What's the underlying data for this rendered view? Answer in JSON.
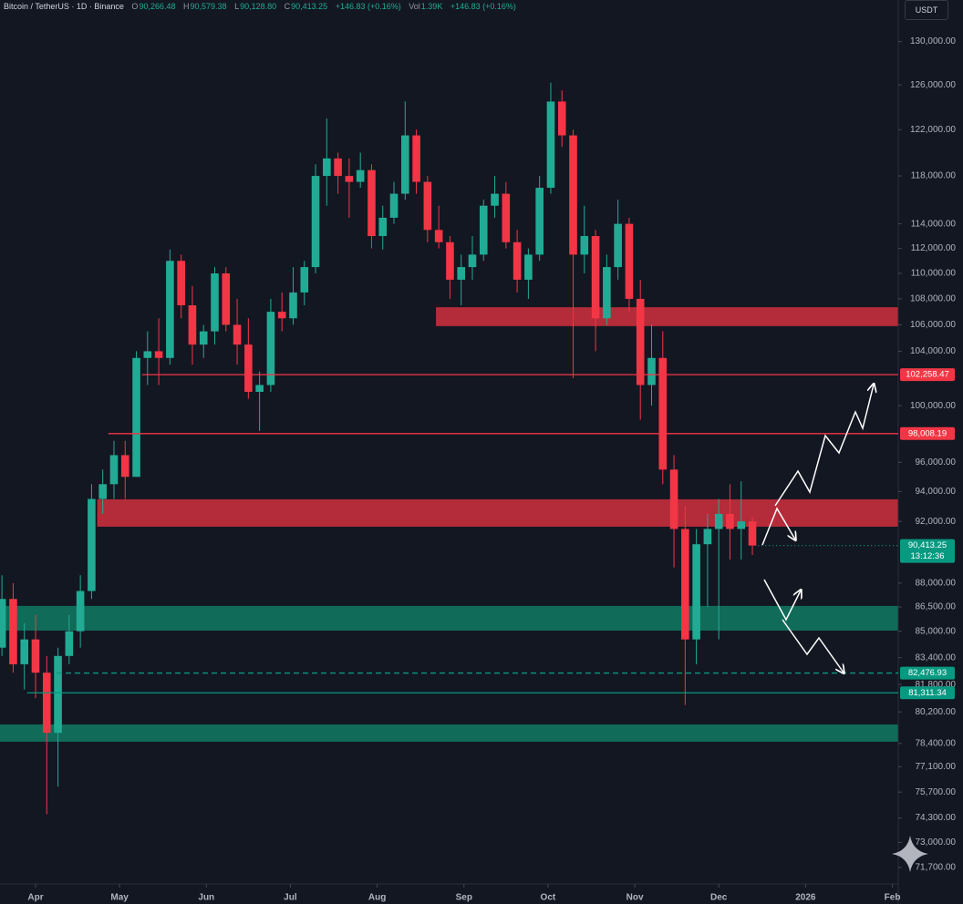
{
  "header": {
    "symbol": "Bitcoin / TetherUS · 1D · Binance",
    "ohlc": [
      {
        "key": "O",
        "value": "90,266.48"
      },
      {
        "key": "H",
        "value": "90,579.38"
      },
      {
        "key": "L",
        "value": "90,128.80"
      },
      {
        "key": "C",
        "value": "90,413.25"
      }
    ],
    "change": "+146.83 (+0.16%)",
    "vol_key": "Vol",
    "vol": "1.39K",
    "vol_change": "+146.83 (+0.16%)"
  },
  "currency_button": "USDT",
  "chart_data": {
    "type": "candlestick",
    "log": true,
    "grid": false,
    "up_color": "#22ab94",
    "down_color": "#f23645",
    "xlim": [
      -12.7,
      308.1
    ],
    "ylim": [
      70850,
      133950
    ],
    "xticks": [
      {
        "value": 0,
        "label": "Apr"
      },
      {
        "value": 30,
        "label": "May"
      },
      {
        "value": 61,
        "label": "Jun"
      },
      {
        "value": 91,
        "label": "Jul"
      },
      {
        "value": 122,
        "label": "Aug"
      },
      {
        "value": 153,
        "label": "Sep"
      },
      {
        "value": 183,
        "label": "Oct"
      },
      {
        "value": 214,
        "label": "Nov"
      },
      {
        "value": 244,
        "label": "Dec"
      },
      {
        "value": 275,
        "label": "2026"
      },
      {
        "value": 306,
        "label": "Feb"
      }
    ],
    "yticks": [
      {
        "value": 130000,
        "label": "130,000.00"
      },
      {
        "value": 126000,
        "label": "126,000.00"
      },
      {
        "value": 122000,
        "label": "122,000.00"
      },
      {
        "value": 118000,
        "label": "118,000.00"
      },
      {
        "value": 114000,
        "label": "114,000.00"
      },
      {
        "value": 112000,
        "label": "112,000.00"
      },
      {
        "value": 110000,
        "label": "110,000.00"
      },
      {
        "value": 108000,
        "label": "108,000.00"
      },
      {
        "value": 106000,
        "label": "106,000.00"
      },
      {
        "value": 104000,
        "label": "104,000.00"
      },
      {
        "value": 100000,
        "label": "100,000.00"
      },
      {
        "value": 96000,
        "label": "96,000.00"
      },
      {
        "value": 94000,
        "label": "94,000.00"
      },
      {
        "value": 92000,
        "label": "92,000.00"
      },
      {
        "value": 88000,
        "label": "88,000.00"
      },
      {
        "value": 86500,
        "label": "86,500.00"
      },
      {
        "value": 85000,
        "label": "85,000.00"
      },
      {
        "value": 83400,
        "label": "83,400.00"
      },
      {
        "value": 81800,
        "label": "81,800.00"
      },
      {
        "value": 80200,
        "label": "80,200.00"
      },
      {
        "value": 78400,
        "label": "78,400.00"
      },
      {
        "value": 77100,
        "label": "77,100.00"
      },
      {
        "value": 75700,
        "label": "75,700.00"
      },
      {
        "value": 74300,
        "label": "74,300.00"
      },
      {
        "value": 73000,
        "label": "73,000.00"
      },
      {
        "value": 71700,
        "label": "71,700.00"
      }
    ],
    "x": [
      -12,
      -8,
      -4,
      0,
      4,
      8,
      12,
      16,
      20,
      24,
      28,
      32,
      36,
      40,
      44,
      48,
      52,
      56,
      60,
      64,
      68,
      72,
      76,
      80,
      84,
      88,
      92,
      96,
      100,
      104,
      108,
      112,
      116,
      120,
      124,
      128,
      132,
      136,
      140,
      144,
      148,
      152,
      156,
      160,
      164,
      168,
      172,
      176,
      180,
      184,
      188,
      192,
      196,
      200,
      204,
      208,
      212,
      216,
      220,
      224,
      228,
      232,
      236,
      240,
      244,
      248,
      252,
      256
    ],
    "open": [
      84000,
      87000,
      83000,
      84500,
      82500,
      79000,
      83500,
      85000,
      87500,
      93500,
      94500,
      96500,
      95000,
      103500,
      104000,
      103500,
      111000,
      107500,
      104500,
      105500,
      110000,
      106000,
      104500,
      101000,
      101500,
      107000,
      106500,
      108500,
      110500,
      118000,
      119500,
      118000,
      117500,
      118500,
      113000,
      114500,
      116500,
      121500,
      117500,
      113500,
      112500,
      109500,
      110500,
      111500,
      115500,
      116500,
      112500,
      109500,
      111500,
      117000,
      124500,
      121500,
      111500,
      113000,
      106500,
      110500,
      114000,
      108000,
      101500,
      103500,
      95500,
      91500,
      84500,
      90500,
      91500,
      92500,
      91500,
      92000
    ],
    "high": [
      88500,
      88000,
      85500,
      86000,
      83500,
      84000,
      86000,
      88500,
      94500,
      95500,
      97500,
      97500,
      104000,
      105500,
      106500,
      111900,
      111500,
      109000,
      106000,
      110500,
      110500,
      108000,
      106500,
      102500,
      108000,
      108500,
      110500,
      111000,
      119000,
      123000,
      120000,
      119500,
      120000,
      119000,
      115500,
      117500,
      124500,
      122000,
      118000,
      115500,
      113000,
      111500,
      113000,
      116000,
      118000,
      117500,
      113500,
      112000,
      118000,
      126200,
      125500,
      122000,
      115500,
      113500,
      111500,
      116000,
      114500,
      109500,
      106000,
      105500,
      96500,
      93000,
      91500,
      92500,
      93500,
      94500,
      94700,
      92300
    ],
    "low": [
      83500,
      82500,
      81500,
      81000,
      74500,
      76000,
      83000,
      84000,
      87000,
      92500,
      93500,
      93500,
      95000,
      101500,
      101500,
      103000,
      106500,
      103000,
      103500,
      104500,
      105500,
      103000,
      100500,
      98200,
      101000,
      105500,
      106000,
      107500,
      110000,
      115500,
      116500,
      114500,
      117000,
      112000,
      111900,
      114000,
      116000,
      116500,
      112500,
      112000,
      108000,
      107500,
      109500,
      111000,
      114500,
      112000,
      108500,
      108000,
      111000,
      116500,
      120500,
      102000,
      110000,
      104000,
      106000,
      109500,
      107000,
      99000,
      100000,
      94500,
      89000,
      80600,
      83000,
      86500,
      84500,
      89500,
      89500,
      89800
    ],
    "close": [
      87000,
      83000,
      84500,
      82500,
      79000,
      83500,
      85000,
      87500,
      93500,
      94500,
      96500,
      95000,
      103500,
      104000,
      103500,
      111000,
      107500,
      104500,
      105500,
      110000,
      106000,
      104500,
      101000,
      101500,
      107000,
      106500,
      108500,
      110500,
      118000,
      119500,
      118000,
      117500,
      118500,
      113000,
      114500,
      116500,
      121500,
      117500,
      113500,
      112500,
      109500,
      110500,
      111500,
      115500,
      116500,
      112500,
      109500,
      111500,
      117000,
      124500,
      121500,
      111500,
      113000,
      106500,
      110500,
      114000,
      108000,
      101500,
      103500,
      95500,
      91500,
      84500,
      90500,
      91500,
      92500,
      91500,
      92000,
      90413.25
    ],
    "zones": [
      {
        "from": 105900,
        "to": 107350,
        "start": 143,
        "color": "#d12f3d"
      },
      {
        "from": 91650,
        "to": 93475,
        "start": 22,
        "color": "#d12f3d"
      },
      {
        "from": 85040,
        "to": 86565,
        "start": -12.7,
        "color": "#127a63"
      },
      {
        "from": 78495,
        "to": 79480,
        "start": -12.7,
        "color": "#127a63"
      }
    ],
    "price_tags": [
      {
        "value": 102258.47,
        "label": "102,258.47",
        "color": "#f23645",
        "line_start": 38,
        "line_style": "solid"
      },
      {
        "value": 98008.19,
        "label": "98,008.19",
        "color": "#f23645",
        "line_start": 26,
        "line_style": "solid"
      },
      {
        "value": 90413.25,
        "label": "90,413.25",
        "color": "#089981",
        "line_start": 258,
        "line_style": "dotted"
      },
      {
        "value": 82476.93,
        "label": "82,476.93",
        "color": "#089981",
        "line_start": 7.5,
        "line_style": "dashed"
      },
      {
        "value": 81311.34,
        "label": "81,311.34",
        "color": "#089981",
        "line_start": -3,
        "line_style": "solid"
      }
    ],
    "countdown": "13:12:36"
  }
}
